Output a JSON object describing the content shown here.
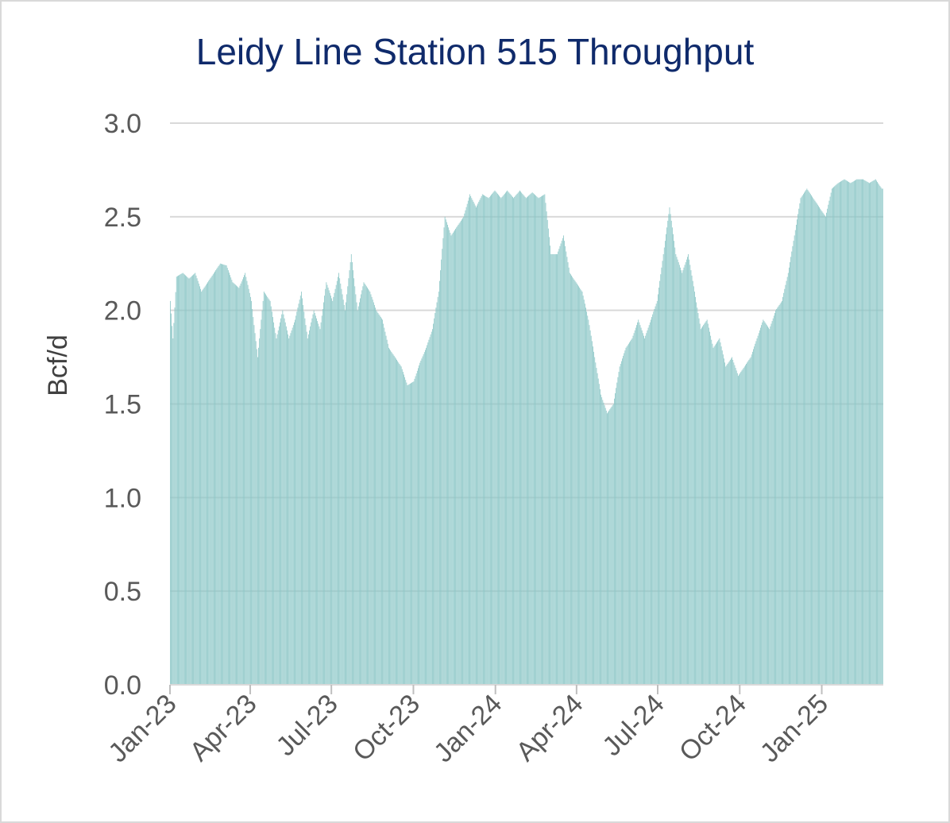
{
  "chart_data": {
    "type": "bar",
    "title": "Leidy Line Station 515 Throughput",
    "xlabel": "",
    "ylabel": "Bcf/d",
    "ylim": [
      0,
      3.0
    ],
    "yticks": [
      "0.0",
      "0.5",
      "1.0",
      "1.5",
      "2.0",
      "2.5",
      "3.0"
    ],
    "xrange": [
      "2023-01-01",
      "2025-03-10"
    ],
    "xtick_labels": [
      "Jan-23",
      "Apr-23",
      "Jul-23",
      "Oct-23",
      "Jan-24",
      "Apr-24",
      "Jul-24",
      "Oct-24",
      "Jan-25"
    ],
    "xtick_dates": [
      "2023-01-01",
      "2023-04-01",
      "2023-07-01",
      "2023-10-01",
      "2024-01-01",
      "2024-04-01",
      "2024-07-01",
      "2024-10-01",
      "2025-01-01"
    ],
    "grid": true,
    "legend": "none",
    "bar_color": "#8ac6c6",
    "series": [
      {
        "frequency": "daily (weekly anchor values, interpolated)",
        "anchors": [
          [
            "2023-01-01",
            2.05
          ],
          [
            "2023-01-04",
            1.85
          ],
          [
            "2023-01-08",
            2.18
          ],
          [
            "2023-01-15",
            2.2
          ],
          [
            "2023-01-22",
            2.17
          ],
          [
            "2023-01-29",
            2.2
          ],
          [
            "2023-02-05",
            2.1
          ],
          [
            "2023-02-12",
            2.15
          ],
          [
            "2023-02-19",
            2.2
          ],
          [
            "2023-02-26",
            2.25
          ],
          [
            "2023-03-05",
            2.24
          ],
          [
            "2023-03-12",
            2.15
          ],
          [
            "2023-03-19",
            2.12
          ],
          [
            "2023-03-26",
            2.2
          ],
          [
            "2023-04-02",
            2.05
          ],
          [
            "2023-04-09",
            1.75
          ],
          [
            "2023-04-16",
            2.1
          ],
          [
            "2023-04-23",
            2.05
          ],
          [
            "2023-04-30",
            1.85
          ],
          [
            "2023-05-07",
            2.0
          ],
          [
            "2023-05-14",
            1.85
          ],
          [
            "2023-05-21",
            1.95
          ],
          [
            "2023-05-28",
            2.1
          ],
          [
            "2023-06-04",
            1.85
          ],
          [
            "2023-06-11",
            2.0
          ],
          [
            "2023-06-18",
            1.9
          ],
          [
            "2023-06-25",
            2.15
          ],
          [
            "2023-07-02",
            2.05
          ],
          [
            "2023-07-09",
            2.2
          ],
          [
            "2023-07-16",
            2.0
          ],
          [
            "2023-07-23",
            2.3
          ],
          [
            "2023-07-30",
            2.0
          ],
          [
            "2023-08-06",
            2.15
          ],
          [
            "2023-08-13",
            2.1
          ],
          [
            "2023-08-20",
            2.0
          ],
          [
            "2023-08-27",
            1.95
          ],
          [
            "2023-09-03",
            1.8
          ],
          [
            "2023-09-10",
            1.75
          ],
          [
            "2023-09-17",
            1.7
          ],
          [
            "2023-09-24",
            1.6
          ],
          [
            "2023-10-01",
            1.62
          ],
          [
            "2023-10-08",
            1.72
          ],
          [
            "2023-10-15",
            1.8
          ],
          [
            "2023-10-22",
            1.9
          ],
          [
            "2023-10-29",
            2.1
          ],
          [
            "2023-11-05",
            2.5
          ],
          [
            "2023-11-12",
            2.4
          ],
          [
            "2023-11-19",
            2.45
          ],
          [
            "2023-11-26",
            2.5
          ],
          [
            "2023-12-03",
            2.62
          ],
          [
            "2023-12-10",
            2.55
          ],
          [
            "2023-12-17",
            2.62
          ],
          [
            "2023-12-24",
            2.6
          ],
          [
            "2023-12-31",
            2.64
          ],
          [
            "2024-01-07",
            2.6
          ],
          [
            "2024-01-14",
            2.64
          ],
          [
            "2024-01-21",
            2.6
          ],
          [
            "2024-01-28",
            2.64
          ],
          [
            "2024-02-04",
            2.6
          ],
          [
            "2024-02-11",
            2.63
          ],
          [
            "2024-02-18",
            2.6
          ],
          [
            "2024-02-25",
            2.62
          ],
          [
            "2024-03-03",
            2.3
          ],
          [
            "2024-03-10",
            2.3
          ],
          [
            "2024-03-17",
            2.4
          ],
          [
            "2024-03-24",
            2.2
          ],
          [
            "2024-03-31",
            2.15
          ],
          [
            "2024-04-07",
            2.1
          ],
          [
            "2024-04-14",
            1.95
          ],
          [
            "2024-04-21",
            1.75
          ],
          [
            "2024-04-28",
            1.55
          ],
          [
            "2024-05-05",
            1.45
          ],
          [
            "2024-05-12",
            1.5
          ],
          [
            "2024-05-19",
            1.7
          ],
          [
            "2024-05-26",
            1.8
          ],
          [
            "2024-06-02",
            1.85
          ],
          [
            "2024-06-09",
            1.95
          ],
          [
            "2024-06-16",
            1.85
          ],
          [
            "2024-06-23",
            1.95
          ],
          [
            "2024-06-30",
            2.05
          ],
          [
            "2024-07-07",
            2.3
          ],
          [
            "2024-07-14",
            2.55
          ],
          [
            "2024-07-21",
            2.3
          ],
          [
            "2024-07-28",
            2.2
          ],
          [
            "2024-08-04",
            2.3
          ],
          [
            "2024-08-11",
            2.1
          ],
          [
            "2024-08-18",
            1.9
          ],
          [
            "2024-08-25",
            1.95
          ],
          [
            "2024-09-01",
            1.8
          ],
          [
            "2024-09-08",
            1.85
          ],
          [
            "2024-09-15",
            1.7
          ],
          [
            "2024-09-22",
            1.75
          ],
          [
            "2024-09-29",
            1.65
          ],
          [
            "2024-10-06",
            1.7
          ],
          [
            "2024-10-13",
            1.75
          ],
          [
            "2024-10-20",
            1.85
          ],
          [
            "2024-10-27",
            1.95
          ],
          [
            "2024-11-03",
            1.9
          ],
          [
            "2024-11-10",
            2.0
          ],
          [
            "2024-11-17",
            2.05
          ],
          [
            "2024-11-24",
            2.2
          ],
          [
            "2024-12-01",
            2.4
          ],
          [
            "2024-12-08",
            2.6
          ],
          [
            "2024-12-15",
            2.65
          ],
          [
            "2024-12-22",
            2.6
          ],
          [
            "2024-12-29",
            2.55
          ],
          [
            "2025-01-05",
            2.5
          ],
          [
            "2025-01-12",
            2.65
          ],
          [
            "2025-01-19",
            2.68
          ],
          [
            "2025-01-26",
            2.7
          ],
          [
            "2025-02-02",
            2.68
          ],
          [
            "2025-02-09",
            2.7
          ],
          [
            "2025-02-16",
            2.7
          ],
          [
            "2025-02-23",
            2.68
          ],
          [
            "2025-03-02",
            2.7
          ],
          [
            "2025-03-09",
            2.65
          ]
        ]
      }
    ]
  }
}
